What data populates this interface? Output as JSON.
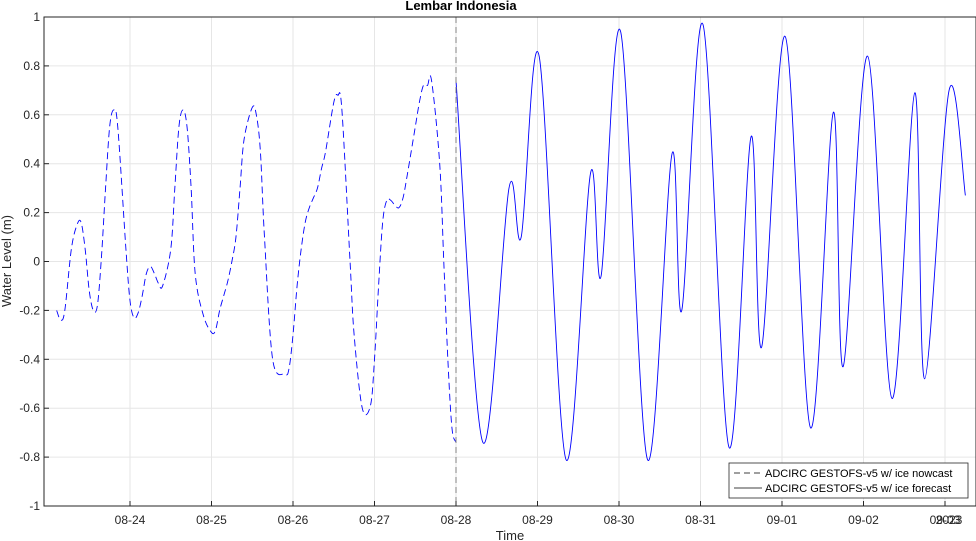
{
  "chart_data": {
    "type": "line",
    "title": "Lembar Indonesia",
    "xlabel": "Time",
    "ylabel": "Water Level (m)",
    "ylim": [
      -1,
      1
    ],
    "xlim_days": [
      -4.9,
      6.25
    ],
    "y_ticks": [
      "-1",
      "-0.8",
      "-0.6",
      "-0.4",
      "-0.2",
      "0",
      "0.2",
      "0.4",
      "0.6",
      "0.8",
      "1"
    ],
    "x_ticks": [
      "08-24",
      "08-25",
      "08-26",
      "08-27",
      "08-28",
      "08-29",
      "08-30",
      "08-31",
      "09-01",
      "09-02",
      "09-03"
    ],
    "x_year_label": "2023",
    "grid": true,
    "legend_position": "bottom-right",
    "divider_date": "08-28",
    "series": [
      {
        "name": "ADCIRC GESTOFS-v5 w/ ice nowcast",
        "style": "dashed",
        "color": "#0000ff",
        "x": [
          -4.9,
          -4.85,
          -4.8,
          -4.72,
          -4.65,
          -4.6,
          -4.55,
          -4.5,
          -4.45,
          -4.4,
          -4.35,
          -4.3,
          -4.25,
          -4.2,
          -4.15,
          -4.05,
          -4.0,
          -3.95,
          -3.9,
          -3.85,
          -3.8,
          -3.75,
          -3.7,
          -3.65,
          -3.6,
          -3.5,
          -3.45,
          -3.4,
          -3.35,
          -3.3,
          -3.25,
          -3.2,
          -3.1,
          -3.0,
          -2.95,
          -2.9,
          -2.85,
          -2.8,
          -2.75,
          -2.7,
          -2.65,
          -2.6,
          -2.5,
          -2.45,
          -2.4,
          -2.35,
          -2.25,
          -2.1,
          -2.05,
          -2.0,
          -1.95,
          -1.9,
          -1.85,
          -1.8,
          -1.75,
          -1.7,
          -1.65,
          -1.6,
          -1.5,
          -1.45,
          -1.4,
          -1.3,
          -1.25,
          -1.15,
          -1.05,
          -1.0,
          -0.95,
          -0.9,
          -0.85,
          -0.8,
          -0.75,
          -0.7,
          -0.65,
          -0.6,
          -0.5,
          -0.45,
          -0.4,
          -0.35,
          -0.3,
          -0.2,
          -0.15,
          -0.1,
          -0.05,
          0.0
        ],
        "values": [
          -0.2,
          -0.24,
          -0.2,
          0.05,
          0.15,
          0.16,
          0.05,
          -0.12,
          -0.2,
          -0.18,
          0.02,
          0.3,
          0.55,
          0.62,
          0.55,
          0.05,
          -0.16,
          -0.23,
          -0.21,
          -0.14,
          -0.05,
          -0.02,
          -0.05,
          -0.09,
          -0.1,
          0.05,
          0.3,
          0.55,
          0.62,
          0.55,
          0.3,
          -0.05,
          -0.22,
          -0.29,
          -0.28,
          -0.2,
          -0.14,
          -0.08,
          0.0,
          0.1,
          0.3,
          0.5,
          0.63,
          0.6,
          0.45,
          0.1,
          -0.4,
          -0.46,
          -0.44,
          -0.3,
          -0.1,
          0.05,
          0.16,
          0.22,
          0.26,
          0.3,
          0.38,
          0.45,
          0.65,
          0.68,
          0.62,
          0.0,
          -0.3,
          -0.6,
          -0.59,
          -0.4,
          -0.1,
          0.16,
          0.25,
          0.25,
          0.23,
          0.22,
          0.26,
          0.35,
          0.55,
          0.65,
          0.72,
          0.72,
          0.74,
          0.4,
          0.0,
          -0.4,
          -0.68,
          -0.74
        ]
      },
      {
        "name": "ADCIRC GESTOFS-v5 w/ ice forecast",
        "style": "solid",
        "color": "#0000ff",
        "x": [
          0.0,
          0.33,
          0.65,
          0.8,
          1.02,
          1.35,
          1.65,
          1.78,
          2.02,
          2.35,
          2.65,
          2.77,
          3.03,
          3.35,
          3.62,
          3.75,
          4.04,
          4.35,
          4.63,
          4.75,
          5.05,
          5.35,
          5.63,
          5.75,
          6.05,
          6.25
        ],
        "values": [
          0.74,
          -0.74,
          0.3,
          0.1,
          0.84,
          -0.81,
          0.36,
          -0.06,
          0.94,
          -0.81,
          0.44,
          -0.2,
          0.97,
          -0.76,
          0.51,
          -0.35,
          0.92,
          -0.68,
          0.61,
          -0.43,
          0.84,
          -0.56,
          0.69,
          -0.48,
          0.7,
          0.27
        ]
      }
    ]
  }
}
